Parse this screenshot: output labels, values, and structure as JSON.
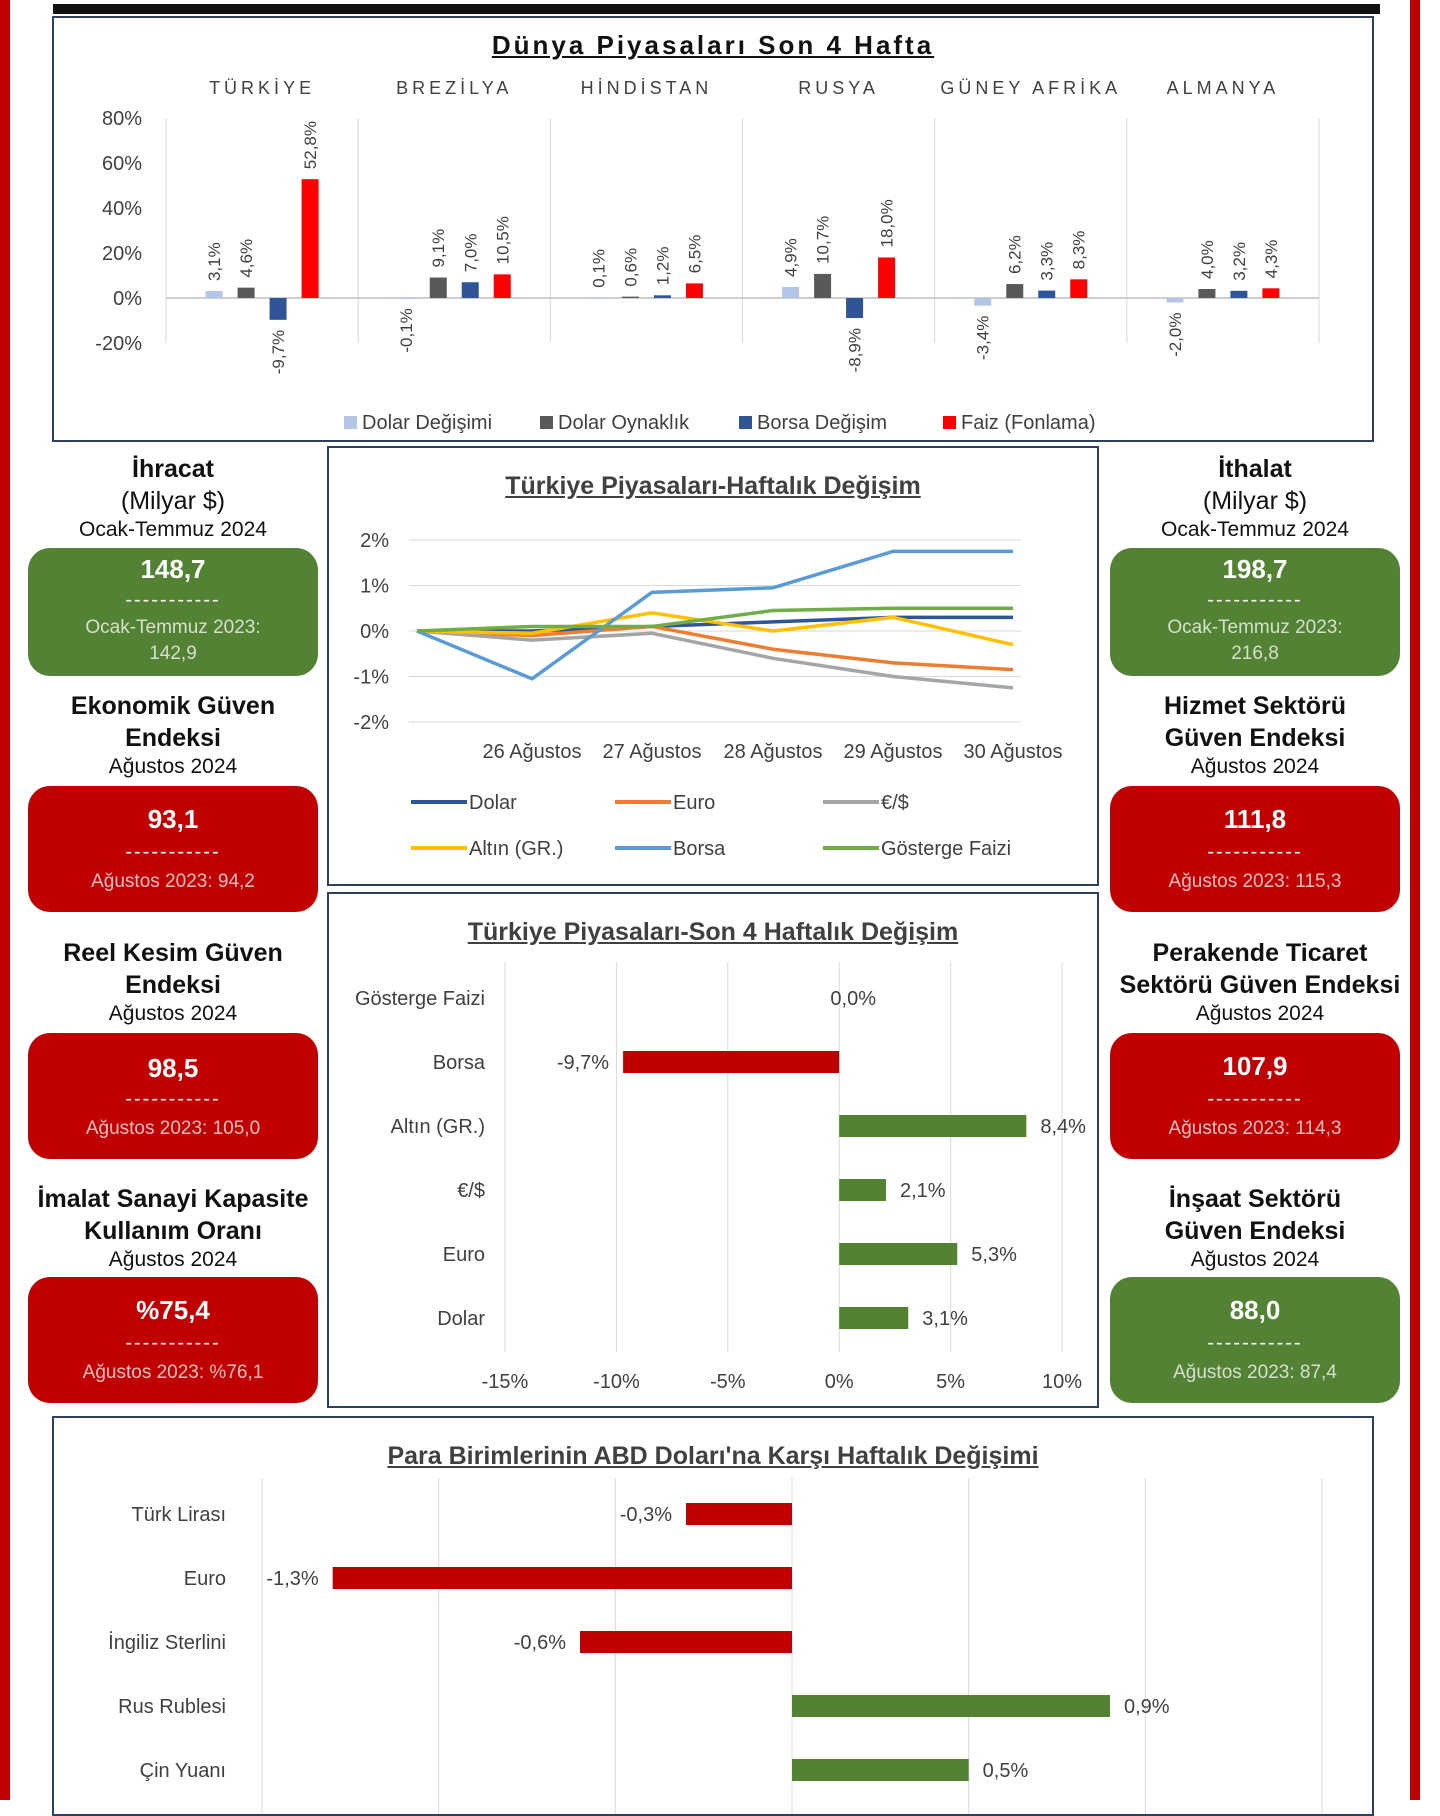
{
  "world": {
    "title": "Dünya Piyasaları Son 4 Hafta",
    "countries": [
      "TÜRKİYE",
      "BREZİLYA",
      "HİNDİSTAN",
      "RUSYA",
      "GÜNEY AFRİKA",
      "ALMANYA"
    ],
    "legend": [
      "Dolar Değişimi",
      "Dolar Oynaklık",
      "Borsa Değişim",
      "Faiz (Fonlama)"
    ],
    "colors": [
      "#b4c6e7",
      "#595959",
      "#2f5597",
      "#ff0000"
    ],
    "y_ticks": [
      "80%",
      "60%",
      "40%",
      "20%",
      "0%",
      "-20%"
    ],
    "value_labels": [
      [
        "3,1%",
        "4,6%",
        "-9,7%",
        "52,8%"
      ],
      [
        "-0,1%",
        "9,1%",
        "7,0%",
        "10,5%"
      ],
      [
        "0,1%",
        "0,6%",
        "1,2%",
        "6,5%"
      ],
      [
        "4,9%",
        "10,7%",
        "-8,9%",
        "18,0%"
      ],
      [
        "-3,4%",
        "6,2%",
        "3,3%",
        "8,3%"
      ],
      [
        "-2,0%",
        "4,0%",
        "3,2%",
        "4,3%"
      ]
    ]
  },
  "weekly": {
    "title": "Türkiye Piyasaları-Haftalık Değişim",
    "x_labels": [
      "26 Ağustos",
      "27 Ağustos",
      "28 Ağustos",
      "29 Ağustos",
      "30 Ağustos"
    ],
    "y_ticks": [
      "2%",
      "1%",
      "0%",
      "-1%",
      "-2%"
    ],
    "legend": [
      "Dolar",
      "Euro",
      "€/$",
      "Altın (GR.)",
      "Borsa",
      "Gösterge Faizi"
    ],
    "colors": [
      "#2f5597",
      "#ed7d31",
      "#a5a5a5",
      "#ffc000",
      "#5b9bd5",
      "#70ad47"
    ]
  },
  "four_week": {
    "title": "Türkiye Piyasaları-Son 4 Haftalık Değişim",
    "categories": [
      "Gösterge Faizi",
      "Borsa",
      "Altın (GR.)",
      "€/$",
      "Euro",
      "Dolar"
    ],
    "value_labels": [
      "0,0%",
      "-9,7%",
      "8,4%",
      "2,1%",
      "5,3%",
      "3,1%"
    ],
    "x_ticks": [
      "-15%",
      "-10%",
      "-5%",
      "0%",
      "5%",
      "10%"
    ]
  },
  "currency": {
    "title": "Para Birimlerinin ABD Doları'na Karşı Haftalık Değişimi",
    "categories": [
      "Türk Lirası",
      "Euro",
      "İngiliz Sterlini",
      "Rus Rublesi",
      "Çin Yuanı"
    ],
    "value_labels": [
      "-0,3%",
      "-1,3%",
      "-0,6%",
      "0,9%",
      "0,5%"
    ]
  },
  "colors": {
    "green": "#548235",
    "red": "#c00000",
    "navy": "#2f3f5f"
  },
  "indicators": {
    "ihracat": {
      "title1": "İhracat",
      "title2": "(Milyar $)",
      "period": "Ocak-Temmuz 2024",
      "value": "148,7",
      "dash": "-----------",
      "prev1": "Ocak-Temmuz 2023:",
      "prev2": "142,9"
    },
    "ithalat": {
      "title1": "İthalat",
      "title2": "(Milyar $)",
      "period": "Ocak-Temmuz 2024",
      "value": "198,7",
      "dash": "-----------",
      "prev1": "Ocak-Temmuz 2023:",
      "prev2": "216,8"
    },
    "ekonomik": {
      "title1": "Ekonomik Güven",
      "title2": "Endeksi",
      "period": "Ağustos 2024",
      "value": "93,1",
      "dash": "-----------",
      "prev": "Ağustos 2023: 94,2"
    },
    "hizmet": {
      "title1": "Hizmet Sektörü",
      "title2": "Güven Endeksi",
      "period": "Ağustos 2024",
      "value": "111,8",
      "dash": "-----------",
      "prev": "Ağustos 2023: 115,3"
    },
    "reel": {
      "title1": "Reel Kesim Güven",
      "title2": "Endeksi",
      "period": "Ağustos 2024",
      "value": "98,5",
      "dash": "-----------",
      "prev": "Ağustos 2023: 105,0"
    },
    "perakende": {
      "title1": "Perakende Ticaret",
      "title2": "Sektörü Güven Endeksi",
      "period": "Ağustos 2024",
      "value": "107,9",
      "dash": "-----------",
      "prev": "Ağustos 2023: 114,3"
    },
    "imalat": {
      "title1": "İmalat Sanayi Kapasite",
      "title2": "Kullanım Oranı",
      "period": "Ağustos 2024",
      "value": "%75,4",
      "dash": "-----------",
      "prev": "Ağustos 2023: %76,1"
    },
    "insaat": {
      "title1": "İnşaat Sektörü",
      "title2": "Güven Endeksi",
      "period": "Ağustos 2024",
      "value": "88,0",
      "dash": "-----------",
      "prev": "Ağustos 2023: 87,4"
    }
  },
  "chart_data": [
    {
      "type": "bar",
      "title": "Dünya Piyasaları Son 4 Hafta",
      "categories": [
        "TÜRKİYE",
        "BREZİLYA",
        "HİNDİSTAN",
        "RUSYA",
        "GÜNEY AFRİKA",
        "ALMANYA"
      ],
      "series": [
        {
          "name": "Dolar Değişimi",
          "values": [
            3.1,
            -0.1,
            0.1,
            4.9,
            -3.4,
            -2.0
          ]
        },
        {
          "name": "Dolar Oynaklık",
          "values": [
            4.6,
            9.1,
            0.6,
            10.7,
            6.2,
            4.0
          ]
        },
        {
          "name": "Borsa Değişim",
          "values": [
            -9.7,
            7.0,
            1.2,
            -8.9,
            3.3,
            3.2
          ]
        },
        {
          "name": "Faiz (Fonlama)",
          "values": [
            52.8,
            10.5,
            6.5,
            18.0,
            8.3,
            4.3
          ]
        }
      ],
      "ylim": [
        -20,
        80
      ],
      "legend": "bottom"
    },
    {
      "type": "line",
      "title": "Türkiye Piyasaları-Haftalık Değişim",
      "x": [
        "",
        "26 Ağustos",
        "27 Ağustos",
        "28 Ağustos",
        "29 Ağustos",
        "30 Ağustos"
      ],
      "series": [
        {
          "name": "Dolar",
          "values": [
            0,
            0.0,
            0.1,
            0.2,
            0.3,
            0.3
          ]
        },
        {
          "name": "Euro",
          "values": [
            0,
            -0.1,
            0.1,
            -0.4,
            -0.7,
            -0.85
          ]
        },
        {
          "name": "€/$",
          "values": [
            0,
            -0.2,
            -0.05,
            -0.6,
            -1.0,
            -1.25
          ]
        },
        {
          "name": "Altın (GR.)",
          "values": [
            0,
            -0.05,
            0.4,
            0.0,
            0.3,
            -0.3
          ]
        },
        {
          "name": "Borsa",
          "values": [
            0,
            -1.05,
            0.85,
            0.95,
            1.75,
            1.75
          ]
        },
        {
          "name": "Gösterge Faizi",
          "values": [
            0,
            0.1,
            0.1,
            0.45,
            0.5,
            0.5
          ]
        }
      ],
      "ylim": [
        -2,
        2
      ],
      "legend": "bottom"
    },
    {
      "type": "bar",
      "orientation": "horizontal",
      "title": "Türkiye Piyasaları-Son 4 Haftalık Değişim",
      "categories": [
        "Gösterge Faizi",
        "Borsa",
        "Altın (GR.)",
        "€/$",
        "Euro",
        "Dolar"
      ],
      "values": [
        0.0,
        -9.7,
        8.4,
        2.1,
        5.3,
        3.1
      ],
      "xlim": [
        -15,
        10
      ]
    },
    {
      "type": "bar",
      "orientation": "horizontal",
      "title": "Para Birimlerinin ABD Doları'na Karşı Haftalık Değişimi",
      "categories": [
        "Türk Lirası",
        "Euro",
        "İngiliz Sterlini",
        "Rus Rublesi",
        "Çin Yuanı"
      ],
      "values": [
        -0.3,
        -1.3,
        -0.6,
        0.9,
        0.5
      ],
      "xlim": [
        -1.5,
        1.5
      ]
    }
  ]
}
